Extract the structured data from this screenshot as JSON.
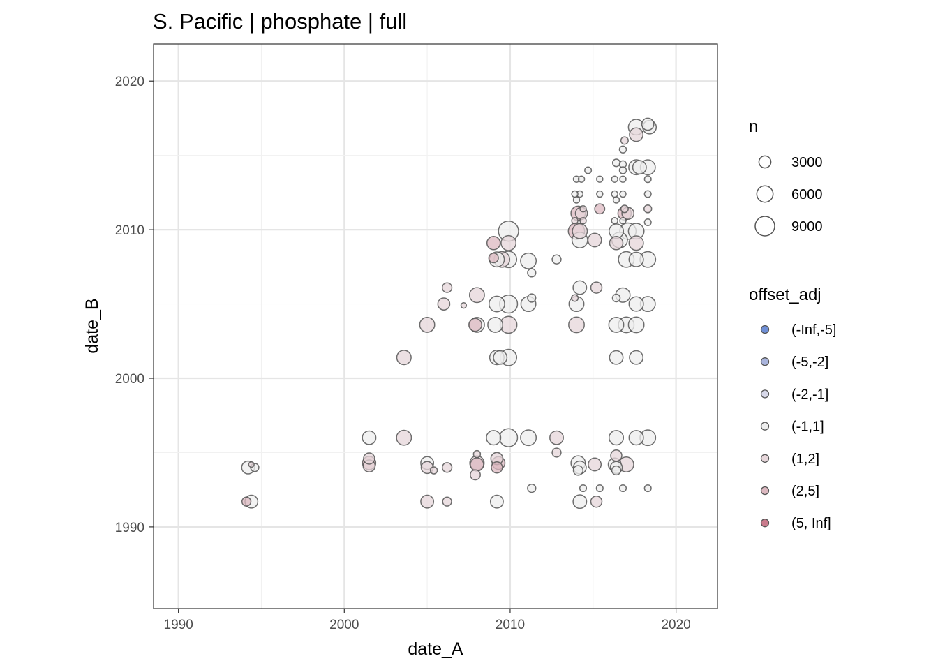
{
  "chart_data": {
    "type": "scatter",
    "title": "S. Pacific | phosphate | full",
    "xlabel": "date_A",
    "ylabel": "date_B",
    "xlim": [
      1988.5,
      2022.5
    ],
    "ylim": [
      1984.5,
      2022.5
    ],
    "x_ticks": [
      1990,
      2000,
      2010,
      2020
    ],
    "y_ticks": [
      1990,
      2000,
      2010,
      2020
    ],
    "x_tick_labels": [
      "1990",
      "2000",
      "2010",
      "2020"
    ],
    "y_tick_labels": [
      "1990",
      "2000",
      "2010",
      "2020"
    ],
    "grid": true,
    "legend_position": "right",
    "size_legend": {
      "title": "n",
      "entries": [
        {
          "label": "3000",
          "value": 3000
        },
        {
          "label": "6000",
          "value": 6000
        },
        {
          "label": "9000",
          "value": 9000
        }
      ]
    },
    "color_legend": {
      "title": "offset_adj",
      "entries": [
        {
          "label": "(-Inf,-5]",
          "color": "#6f8fd6"
        },
        {
          "label": "(-5,-2]",
          "color": "#a9b4dc"
        },
        {
          "label": "(-2,-1]",
          "color": "#d7d8e9"
        },
        {
          "label": "(-1,1]",
          "color": "#eeeeee"
        },
        {
          "label": "(1,2]",
          "color": "#e6d6da"
        },
        {
          "label": "(2,5]",
          "color": "#dcb8c0"
        },
        {
          "label": "(5, Inf]",
          "color": "#c97b8c"
        }
      ]
    },
    "points": [
      {
        "x": 1994.2,
        "y": 1994.0,
        "n": 3500,
        "c": "(-1,1]"
      },
      {
        "x": 1994.6,
        "y": 1994.0,
        "n": 1200,
        "c": "(-1,1]"
      },
      {
        "x": 1994.4,
        "y": 1994.2,
        "n": 400,
        "c": "(1,2]"
      },
      {
        "x": 1994.4,
        "y": 1991.7,
        "n": 3500,
        "c": "(-1,1]"
      },
      {
        "x": 1994.1,
        "y": 1991.7,
        "n": 1500,
        "c": "(2,5]"
      },
      {
        "x": 2001.5,
        "y": 1996.0,
        "n": 4000,
        "c": "(-1,1]"
      },
      {
        "x": 2001.5,
        "y": 1994.6,
        "n": 2500,
        "c": "(1,2]"
      },
      {
        "x": 2001.5,
        "y": 1994.3,
        "n": 3800,
        "c": "(2,5]"
      },
      {
        "x": 2001.5,
        "y": 1994.1,
        "n": 3000,
        "c": "(1,2]"
      },
      {
        "x": 2003.6,
        "y": 1996.0,
        "n": 5000,
        "c": "(1,2]"
      },
      {
        "x": 2003.6,
        "y": 2001.4,
        "n": 4500,
        "c": "(1,2]"
      },
      {
        "x": 2005.0,
        "y": 2003.6,
        "n": 5000,
        "c": "(1,2]"
      },
      {
        "x": 2006.2,
        "y": 2006.1,
        "n": 1800,
        "c": "(1,2]"
      },
      {
        "x": 2006.0,
        "y": 2005.0,
        "n": 3000,
        "c": "(1,2]"
      },
      {
        "x": 2007.2,
        "y": 2004.9,
        "n": 400,
        "c": "(1,2]"
      },
      {
        "x": 2005.0,
        "y": 1994.3,
        "n": 3500,
        "c": "(-1,1]"
      },
      {
        "x": 2005.0,
        "y": 1994.0,
        "n": 3000,
        "c": "(1,2]"
      },
      {
        "x": 2005.4,
        "y": 1993.8,
        "n": 800,
        "c": "(1,2]"
      },
      {
        "x": 2006.2,
        "y": 1994.0,
        "n": 1800,
        "c": "(1,2]"
      },
      {
        "x": 2005.0,
        "y": 1991.7,
        "n": 3500,
        "c": "(1,2]"
      },
      {
        "x": 2006.2,
        "y": 1991.7,
        "n": 1500,
        "c": "(1,2]"
      },
      {
        "x": 2008.0,
        "y": 2005.6,
        "n": 5000,
        "c": "(1,2]"
      },
      {
        "x": 2008.0,
        "y": 2003.6,
        "n": 5000,
        "c": "(-1,1]"
      },
      {
        "x": 2007.9,
        "y": 2003.6,
        "n": 3500,
        "c": "(2,5]"
      },
      {
        "x": 2008.0,
        "y": 1994.9,
        "n": 800,
        "c": "(1,2]"
      },
      {
        "x": 2008.0,
        "y": 1994.3,
        "n": 4500,
        "c": "(1,2]"
      },
      {
        "x": 2008.0,
        "y": 1994.2,
        "n": 3800,
        "c": "(2,5]"
      },
      {
        "x": 2007.9,
        "y": 1993.5,
        "n": 2000,
        "c": "(1,2]"
      },
      {
        "x": 2009.0,
        "y": 2009.1,
        "n": 3800,
        "c": "(2,5]"
      },
      {
        "x": 2009.2,
        "y": 2008.0,
        "n": 5000,
        "c": "(-1,1]"
      },
      {
        "x": 2009.5,
        "y": 2008.0,
        "n": 5500,
        "c": "(1,2]"
      },
      {
        "x": 2009.0,
        "y": 2008.1,
        "n": 1800,
        "c": "(2,5]"
      },
      {
        "x": 2009.2,
        "y": 2005.0,
        "n": 5500,
        "c": "(-1,1]"
      },
      {
        "x": 2009.1,
        "y": 2003.6,
        "n": 5000,
        "c": "(-1,1]"
      },
      {
        "x": 2009.2,
        "y": 2001.4,
        "n": 4500,
        "c": "(-1,1]"
      },
      {
        "x": 2009.4,
        "y": 2001.4,
        "n": 4000,
        "c": "(-1,1]"
      },
      {
        "x": 2009.0,
        "y": 1996.0,
        "n": 4500,
        "c": "(-1,1]"
      },
      {
        "x": 2009.2,
        "y": 1994.6,
        "n": 3000,
        "c": "(1,2]"
      },
      {
        "x": 2009.3,
        "y": 1994.3,
        "n": 3500,
        "c": "(2,5]"
      },
      {
        "x": 2009.2,
        "y": 1994.0,
        "n": 2500,
        "c": "(2,5]"
      },
      {
        "x": 2009.2,
        "y": 1991.7,
        "n": 3500,
        "c": "(-1,1]"
      },
      {
        "x": 2009.9,
        "y": 2009.9,
        "n": 9500,
        "c": "(-1,1]"
      },
      {
        "x": 2009.9,
        "y": 2009.1,
        "n": 5000,
        "c": "(1,2]"
      },
      {
        "x": 2009.9,
        "y": 2008.0,
        "n": 6000,
        "c": "(-1,1]"
      },
      {
        "x": 2009.9,
        "y": 2005.0,
        "n": 7500,
        "c": "(-1,1]"
      },
      {
        "x": 2009.9,
        "y": 2003.6,
        "n": 6500,
        "c": "(1,2]"
      },
      {
        "x": 2009.9,
        "y": 2001.4,
        "n": 6000,
        "c": "(-1,1]"
      },
      {
        "x": 2009.9,
        "y": 1996.0,
        "n": 7500,
        "c": "(-1,1]"
      },
      {
        "x": 2011.1,
        "y": 2007.9,
        "n": 5500,
        "c": "(-1,1]"
      },
      {
        "x": 2011.3,
        "y": 2007.1,
        "n": 1200,
        "c": "(-1,1]"
      },
      {
        "x": 2011.1,
        "y": 2005.0,
        "n": 5000,
        "c": "(-1,1]"
      },
      {
        "x": 2011.3,
        "y": 2005.4,
        "n": 1200,
        "c": "(-1,1]"
      },
      {
        "x": 2011.1,
        "y": 1996.0,
        "n": 5500,
        "c": "(-1,1]"
      },
      {
        "x": 2011.3,
        "y": 1992.6,
        "n": 1200,
        "c": "(-1,1]"
      },
      {
        "x": 2012.8,
        "y": 2008.0,
        "n": 1500,
        "c": "(-1,1]"
      },
      {
        "x": 2012.8,
        "y": 1996.0,
        "n": 4000,
        "c": "(1,2]"
      },
      {
        "x": 2012.8,
        "y": 1995.0,
        "n": 1500,
        "c": "(1,2]"
      },
      {
        "x": 2014.0,
        "y": 2013.4,
        "n": 600,
        "c": "(-1,1]"
      },
      {
        "x": 2014.3,
        "y": 2013.4,
        "n": 600,
        "c": "(-1,1]"
      },
      {
        "x": 2014.2,
        "y": 2012.4,
        "n": 600,
        "c": "(-1,1]"
      },
      {
        "x": 2013.9,
        "y": 2012.4,
        "n": 600,
        "c": "(-1,1]"
      },
      {
        "x": 2014.0,
        "y": 2012.0,
        "n": 600,
        "c": "(-1,1]"
      },
      {
        "x": 2014.7,
        "y": 2014.0,
        "n": 700,
        "c": "(-1,1]"
      },
      {
        "x": 2014.4,
        "y": 2011.4,
        "n": 600,
        "c": "(1,2]"
      },
      {
        "x": 2014.1,
        "y": 2011.1,
        "n": 4500,
        "c": "(2,5]"
      },
      {
        "x": 2014.3,
        "y": 2011.1,
        "n": 3000,
        "c": "(1,2]"
      },
      {
        "x": 2013.9,
        "y": 2010.6,
        "n": 600,
        "c": "(1,2]"
      },
      {
        "x": 2014.4,
        "y": 2010.6,
        "n": 600,
        "c": "(1,2]"
      },
      {
        "x": 2014.0,
        "y": 2009.9,
        "n": 6000,
        "c": "(2,5]"
      },
      {
        "x": 2014.2,
        "y": 2009.9,
        "n": 5000,
        "c": "(1,2]"
      },
      {
        "x": 2014.2,
        "y": 2009.3,
        "n": 5500,
        "c": "(-1,1]"
      },
      {
        "x": 2014.2,
        "y": 2006.1,
        "n": 4000,
        "c": "(-1,1]"
      },
      {
        "x": 2013.9,
        "y": 2005.4,
        "n": 700,
        "c": "(1,2]"
      },
      {
        "x": 2014.0,
        "y": 2005.0,
        "n": 5000,
        "c": "(-1,1]"
      },
      {
        "x": 2014.0,
        "y": 2003.6,
        "n": 5500,
        "c": "(1,2]"
      },
      {
        "x": 2014.1,
        "y": 1994.3,
        "n": 4500,
        "c": "(-1,1]"
      },
      {
        "x": 2014.2,
        "y": 1994.0,
        "n": 3500,
        "c": "(-1,1]"
      },
      {
        "x": 2014.1,
        "y": 1993.8,
        "n": 1800,
        "c": "(-1,1]"
      },
      {
        "x": 2014.2,
        "y": 1991.7,
        "n": 4000,
        "c": "(-1,1]"
      },
      {
        "x": 2014.4,
        "y": 1992.6,
        "n": 700,
        "c": "(-1,1]"
      },
      {
        "x": 2015.1,
        "y": 2009.3,
        "n": 4000,
        "c": "(1,2]"
      },
      {
        "x": 2015.2,
        "y": 2006.1,
        "n": 2500,
        "c": "(1,2]"
      },
      {
        "x": 2015.4,
        "y": 2013.4,
        "n": 600,
        "c": "(-1,1]"
      },
      {
        "x": 2015.4,
        "y": 2012.4,
        "n": 600,
        "c": "(-1,1]"
      },
      {
        "x": 2015.4,
        "y": 2011.4,
        "n": 2000,
        "c": "(2,5]"
      },
      {
        "x": 2015.1,
        "y": 1994.2,
        "n": 3500,
        "c": "(1,2]"
      },
      {
        "x": 2015.2,
        "y": 1991.7,
        "n": 2500,
        "c": "(1,2]"
      },
      {
        "x": 2015.4,
        "y": 1992.6,
        "n": 700,
        "c": "(-1,1]"
      },
      {
        "x": 2016.4,
        "y": 2014.5,
        "n": 900,
        "c": "(-1,1]"
      },
      {
        "x": 2016.9,
        "y": 2016.0,
        "n": 900,
        "c": "(1,2]"
      },
      {
        "x": 2016.8,
        "y": 2015.4,
        "n": 800,
        "c": "(-1,1]"
      },
      {
        "x": 2016.8,
        "y": 2014.4,
        "n": 800,
        "c": "(-1,1]"
      },
      {
        "x": 2016.8,
        "y": 2014.0,
        "n": 800,
        "c": "(-1,1]"
      },
      {
        "x": 2016.3,
        "y": 2013.4,
        "n": 600,
        "c": "(-1,1]"
      },
      {
        "x": 2016.8,
        "y": 2013.4,
        "n": 600,
        "c": "(-1,1]"
      },
      {
        "x": 2016.3,
        "y": 2012.4,
        "n": 600,
        "c": "(-1,1]"
      },
      {
        "x": 2016.8,
        "y": 2012.4,
        "n": 600,
        "c": "(-1,1]"
      },
      {
        "x": 2016.4,
        "y": 2012.0,
        "n": 600,
        "c": "(-1,1]"
      },
      {
        "x": 2016.9,
        "y": 2011.4,
        "n": 900,
        "c": "(1,2]"
      },
      {
        "x": 2016.9,
        "y": 2011.1,
        "n": 3800,
        "c": "(2,5]"
      },
      {
        "x": 2017.1,
        "y": 2011.1,
        "n": 3000,
        "c": "(1,2]"
      },
      {
        "x": 2016.3,
        "y": 2010.6,
        "n": 600,
        "c": "(-1,1]"
      },
      {
        "x": 2016.8,
        "y": 2010.6,
        "n": 600,
        "c": "(-1,1]"
      },
      {
        "x": 2016.4,
        "y": 2009.9,
        "n": 4500,
        "c": "(-1,1]"
      },
      {
        "x": 2016.6,
        "y": 2009.3,
        "n": 5500,
        "c": "(-1,1]"
      },
      {
        "x": 2017.1,
        "y": 2009.9,
        "n": 6000,
        "c": "(-1,1]"
      },
      {
        "x": 2016.4,
        "y": 2009.1,
        "n": 3800,
        "c": "(1,2]"
      },
      {
        "x": 2017.0,
        "y": 2008.0,
        "n": 5500,
        "c": "(-1,1]"
      },
      {
        "x": 2016.4,
        "y": 2005.4,
        "n": 1000,
        "c": "(-1,1]"
      },
      {
        "x": 2016.8,
        "y": 2005.6,
        "n": 4500,
        "c": "(-1,1]"
      },
      {
        "x": 2016.4,
        "y": 2003.6,
        "n": 5000,
        "c": "(-1,1]"
      },
      {
        "x": 2017.0,
        "y": 2003.6,
        "n": 5500,
        "c": "(-1,1]"
      },
      {
        "x": 2016.4,
        "y": 2001.4,
        "n": 4000,
        "c": "(-1,1]"
      },
      {
        "x": 2016.4,
        "y": 1996.0,
        "n": 4500,
        "c": "(-1,1]"
      },
      {
        "x": 2016.4,
        "y": 1994.8,
        "n": 2500,
        "c": "(1,2]"
      },
      {
        "x": 2016.3,
        "y": 1994.2,
        "n": 3500,
        "c": "(-1,1]"
      },
      {
        "x": 2016.4,
        "y": 1994.0,
        "n": 3000,
        "c": "(-1,1]"
      },
      {
        "x": 2017.0,
        "y": 1994.2,
        "n": 5000,
        "c": "(1,2]"
      },
      {
        "x": 2016.4,
        "y": 1993.8,
        "n": 1500,
        "c": "(-1,1]"
      },
      {
        "x": 2016.8,
        "y": 1992.6,
        "n": 700,
        "c": "(-1,1]"
      },
      {
        "x": 2017.6,
        "y": 2016.9,
        "n": 5500,
        "c": "(-1,1]"
      },
      {
        "x": 2017.6,
        "y": 2016.4,
        "n": 4000,
        "c": "(1,2]"
      },
      {
        "x": 2018.4,
        "y": 2016.9,
        "n": 4000,
        "c": "(-1,1]"
      },
      {
        "x": 2018.3,
        "y": 2017.1,
        "n": 3000,
        "c": "(-1,1]"
      },
      {
        "x": 2017.6,
        "y": 2014.2,
        "n": 5000,
        "c": "(-1,1]"
      },
      {
        "x": 2017.8,
        "y": 2014.2,
        "n": 4000,
        "c": "(-1,1]"
      },
      {
        "x": 2018.3,
        "y": 2014.2,
        "n": 5000,
        "c": "(-1,1]"
      },
      {
        "x": 2018.3,
        "y": 2013.4,
        "n": 700,
        "c": "(-1,1]"
      },
      {
        "x": 2018.3,
        "y": 2012.4,
        "n": 700,
        "c": "(-1,1]"
      },
      {
        "x": 2018.3,
        "y": 2011.4,
        "n": 1000,
        "c": "(1,2]"
      },
      {
        "x": 2018.3,
        "y": 2010.5,
        "n": 700,
        "c": "(-1,1]"
      },
      {
        "x": 2017.6,
        "y": 2009.9,
        "n": 5500,
        "c": "(-1,1]"
      },
      {
        "x": 2017.6,
        "y": 2009.1,
        "n": 4500,
        "c": "(1,2]"
      },
      {
        "x": 2017.6,
        "y": 2008.0,
        "n": 4500,
        "c": "(-1,1]"
      },
      {
        "x": 2018.3,
        "y": 2008.0,
        "n": 5500,
        "c": "(-1,1]"
      },
      {
        "x": 2017.6,
        "y": 2005.0,
        "n": 4500,
        "c": "(-1,1]"
      },
      {
        "x": 2018.3,
        "y": 2005.0,
        "n": 5000,
        "c": "(-1,1]"
      },
      {
        "x": 2017.6,
        "y": 2003.6,
        "n": 5500,
        "c": "(-1,1]"
      },
      {
        "x": 2017.6,
        "y": 2001.4,
        "n": 4000,
        "c": "(-1,1]"
      },
      {
        "x": 2017.6,
        "y": 1996.0,
        "n": 4500,
        "c": "(-1,1]"
      },
      {
        "x": 2018.3,
        "y": 1996.0,
        "n": 5500,
        "c": "(-1,1]"
      },
      {
        "x": 2018.3,
        "y": 1992.6,
        "n": 700,
        "c": "(-1,1]"
      }
    ]
  }
}
